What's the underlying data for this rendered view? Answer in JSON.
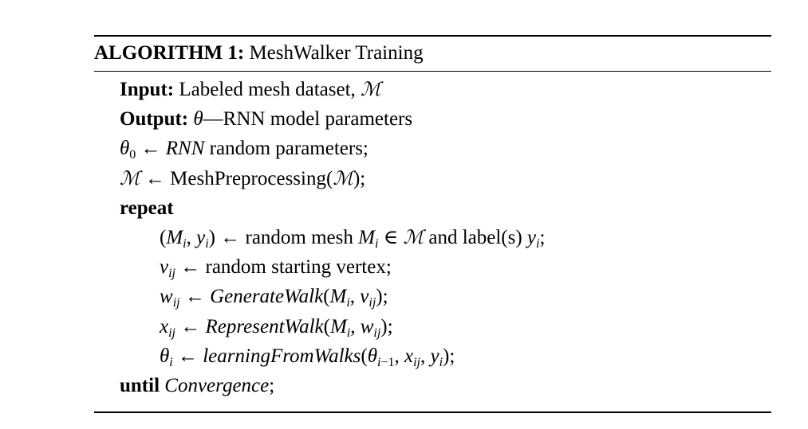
{
  "caption": {
    "label": "ALGORITHM 1:",
    "title": "MeshWalker Training"
  },
  "lines": [
    {
      "kw": "Input:",
      "text": "Labeled mesh dataset,",
      "sym": "ℳ"
    },
    {
      "kw": "Output:",
      "text": "θ—RNN model parameters"
    },
    {
      "text": "θ0 ← RNN random parameters;"
    },
    {
      "text": "ℳ ← MeshPreprocessing(ℳ);"
    },
    {
      "kw": "repeat"
    },
    {
      "text": "(Mi, yi) ← random mesh Mi ∈ ℳ and label(s) yi;"
    },
    {
      "text": "vij ← random starting vertex;"
    },
    {
      "text": "wij ← GenerateWalk(Mi, vij);"
    },
    {
      "text": "xij ← RepresentWalk(Mi, wij);"
    },
    {
      "text": "θi ← learningFromWalks(θi−1, xij, yi);"
    },
    {
      "kw": "until",
      "text": "Convergence;"
    }
  ]
}
